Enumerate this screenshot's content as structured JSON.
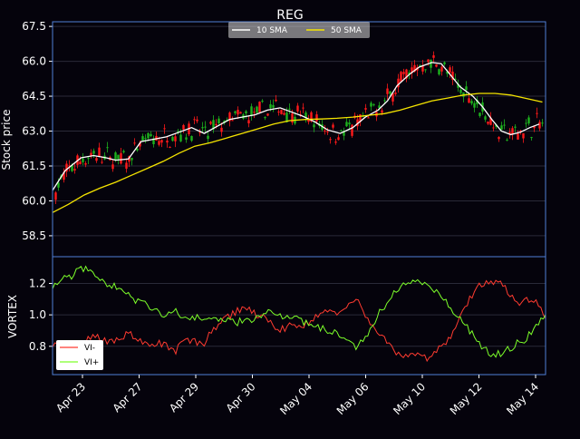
{
  "colors": {
    "background": "#05030c",
    "axis_frame": "#4f7fd6",
    "grid": "#2a2a38",
    "text": "#ffffff",
    "candle_up": "#1db31d",
    "candle_down": "#ff1a1a",
    "sma10": "#ffffff",
    "sma50": "#f5e400",
    "vi_minus": "#ff3b30",
    "vi_plus": "#7dff2a",
    "legend_bg": "#d9d9d9"
  },
  "chart_data": [
    {
      "type": "line",
      "subtype": "candlestick-with-moving-averages",
      "title": "REG",
      "xlabel": "",
      "ylabel": "Stock price",
      "ylim": [
        57.6,
        67.7
      ],
      "yticks": [
        58.5,
        60.0,
        61.5,
        63.0,
        64.5,
        66.0,
        67.5
      ],
      "ytick_labels": [
        "58.5",
        "60.0",
        "61.5",
        "63.0",
        "64.5",
        "66.0",
        "67.5"
      ],
      "grid": true,
      "legend_position": "top-center",
      "candles": {
        "count": 180,
        "close_min": 61.2,
        "close_max": 67.1
      },
      "series": [
        {
          "name": "10 SMA",
          "points": [
            [
              0,
              60.45
            ],
            [
              8,
              61.3
            ],
            [
              18,
              61.85
            ],
            [
              26,
              61.95
            ],
            [
              34,
              61.85
            ],
            [
              40,
              61.75
            ],
            [
              48,
              61.8
            ],
            [
              56,
              62.55
            ],
            [
              64,
              62.65
            ],
            [
              72,
              62.75
            ],
            [
              80,
              62.95
            ],
            [
              88,
              63.15
            ],
            [
              96,
              62.9
            ],
            [
              104,
              63.2
            ],
            [
              112,
              63.5
            ],
            [
              120,
              63.6
            ],
            [
              128,
              63.7
            ],
            [
              136,
              63.9
            ],
            [
              144,
              64.0
            ],
            [
              150,
              63.85
            ],
            [
              158,
              63.65
            ],
            [
              166,
              63.4
            ],
            [
              174,
              63.05
            ],
            [
              182,
              62.9
            ],
            [
              190,
              63.15
            ],
            [
              198,
              63.6
            ],
            [
              206,
              63.9
            ],
            [
              212,
              64.3
            ],
            [
              218,
              64.95
            ],
            [
              226,
              65.45
            ],
            [
              232,
              65.75
            ],
            [
              240,
              65.95
            ],
            [
              246,
              65.9
            ],
            [
              252,
              65.4
            ],
            [
              258,
              64.9
            ],
            [
              266,
              64.5
            ],
            [
              272,
              64.05
            ],
            [
              278,
              63.5
            ],
            [
              284,
              63.0
            ],
            [
              290,
              62.85
            ],
            [
              296,
              62.95
            ],
            [
              302,
              63.15
            ],
            [
              308,
              63.3
            ]
          ]
        },
        {
          "name": "50 SMA",
          "points": [
            [
              0,
              59.5
            ],
            [
              10,
              59.85
            ],
            [
              20,
              60.25
            ],
            [
              30,
              60.55
            ],
            [
              40,
              60.8
            ],
            [
              50,
              61.1
            ],
            [
              60,
              61.4
            ],
            [
              70,
              61.7
            ],
            [
              80,
              62.05
            ],
            [
              90,
              62.35
            ],
            [
              100,
              62.5
            ],
            [
              110,
              62.7
            ],
            [
              120,
              62.9
            ],
            [
              130,
              63.1
            ],
            [
              140,
              63.3
            ],
            [
              150,
              63.45
            ],
            [
              160,
              63.5
            ],
            [
              170,
              63.52
            ],
            [
              180,
              63.55
            ],
            [
              190,
              63.6
            ],
            [
              200,
              63.68
            ],
            [
              210,
              63.75
            ],
            [
              220,
              63.9
            ],
            [
              230,
              64.1
            ],
            [
              240,
              64.3
            ],
            [
              250,
              64.42
            ],
            [
              260,
              64.55
            ],
            [
              270,
              64.62
            ],
            [
              280,
              64.62
            ],
            [
              290,
              64.55
            ],
            [
              300,
              64.4
            ],
            [
              310,
              64.25
            ]
          ]
        }
      ]
    },
    {
      "type": "line",
      "subtype": "vortex-indicator",
      "title": "",
      "xlabel": "",
      "ylabel": "VORTEX",
      "ylim": [
        0.62,
        1.37
      ],
      "yticks": [
        0.8,
        1.0,
        1.2
      ],
      "ytick_labels": [
        "0.8",
        "1.0",
        "1.2"
      ],
      "grid": true,
      "legend_position": "bottom-left",
      "x_tick_labels": [
        "Apr 23",
        "Apr 27",
        "Apr 29",
        "Apr 30",
        "May 04",
        "May 06",
        "May 10",
        "May 12",
        "May 14"
      ],
      "series": [
        {
          "name": "VI-",
          "points": [
            [
              0,
              0.82
            ],
            [
              6,
              0.8
            ],
            [
              12,
              0.82
            ],
            [
              18,
              0.8
            ],
            [
              24,
              0.86
            ],
            [
              30,
              0.85
            ],
            [
              36,
              0.82
            ],
            [
              42,
              0.86
            ],
            [
              48,
              0.88
            ],
            [
              54,
              0.84
            ],
            [
              60,
              0.8
            ],
            [
              66,
              0.82
            ],
            [
              72,
              0.8
            ],
            [
              78,
              0.77
            ],
            [
              84,
              0.84
            ],
            [
              90,
              0.83
            ],
            [
              96,
              0.82
            ],
            [
              102,
              0.91
            ],
            [
              108,
              0.96
            ],
            [
              114,
              1.01
            ],
            [
              120,
              1.04
            ],
            [
              126,
              1.02
            ],
            [
              132,
              0.99
            ],
            [
              138,
              0.95
            ],
            [
              144,
              0.9
            ],
            [
              150,
              0.93
            ],
            [
              156,
              0.92
            ],
            [
              162,
              0.96
            ],
            [
              168,
              0.99
            ],
            [
              174,
              1.03
            ],
            [
              180,
              1.01
            ],
            [
              186,
              1.06
            ],
            [
              192,
              1.1
            ],
            [
              198,
              1.0
            ],
            [
              204,
              0.91
            ],
            [
              210,
              0.85
            ],
            [
              216,
              0.77
            ],
            [
              222,
              0.74
            ],
            [
              228,
              0.75
            ],
            [
              234,
              0.72
            ],
            [
              240,
              0.74
            ],
            [
              246,
              0.8
            ],
            [
              252,
              0.87
            ],
            [
              258,
              1.0
            ],
            [
              264,
              1.1
            ],
            [
              270,
              1.18
            ],
            [
              276,
              1.21
            ],
            [
              282,
              1.22
            ],
            [
              288,
              1.15
            ],
            [
              294,
              1.08
            ],
            [
              300,
              1.1
            ],
            [
              306,
              1.08
            ],
            [
              312,
              1.0
            ]
          ]
        },
        {
          "name": "VI+",
          "points": [
            [
              0,
              1.19
            ],
            [
              6,
              1.22
            ],
            [
              12,
              1.25
            ],
            [
              18,
              1.31
            ],
            [
              24,
              1.27
            ],
            [
              30,
              1.22
            ],
            [
              36,
              1.17
            ],
            [
              42,
              1.19
            ],
            [
              48,
              1.12
            ],
            [
              54,
              1.08
            ],
            [
              60,
              1.06
            ],
            [
              66,
              1.03
            ],
            [
              72,
              1.0
            ],
            [
              78,
              1.02
            ],
            [
              84,
              0.99
            ],
            [
              90,
              0.98
            ],
            [
              96,
              0.99
            ],
            [
              102,
              0.98
            ],
            [
              108,
              0.97
            ],
            [
              114,
              0.95
            ],
            [
              120,
              0.96
            ],
            [
              126,
              0.97
            ],
            [
              132,
              0.99
            ],
            [
              138,
              1.02
            ],
            [
              144,
              1.0
            ],
            [
              150,
              0.99
            ],
            [
              156,
              0.97
            ],
            [
              162,
              0.94
            ],
            [
              168,
              0.93
            ],
            [
              174,
              0.9
            ],
            [
              180,
              0.88
            ],
            [
              186,
              0.84
            ],
            [
              192,
              0.8
            ],
            [
              198,
              0.85
            ],
            [
              204,
              0.97
            ],
            [
              210,
              1.06
            ],
            [
              216,
              1.13
            ],
            [
              222,
              1.2
            ],
            [
              228,
              1.23
            ],
            [
              234,
              1.2
            ],
            [
              240,
              1.16
            ],
            [
              246,
              1.12
            ],
            [
              252,
              1.05
            ],
            [
              258,
              0.97
            ],
            [
              264,
              0.9
            ],
            [
              270,
              0.82
            ],
            [
              276,
              0.76
            ],
            [
              282,
              0.75
            ],
            [
              288,
              0.78
            ],
            [
              294,
              0.82
            ],
            [
              300,
              0.85
            ],
            [
              306,
              0.92
            ],
            [
              312,
              0.99
            ]
          ]
        }
      ]
    }
  ]
}
